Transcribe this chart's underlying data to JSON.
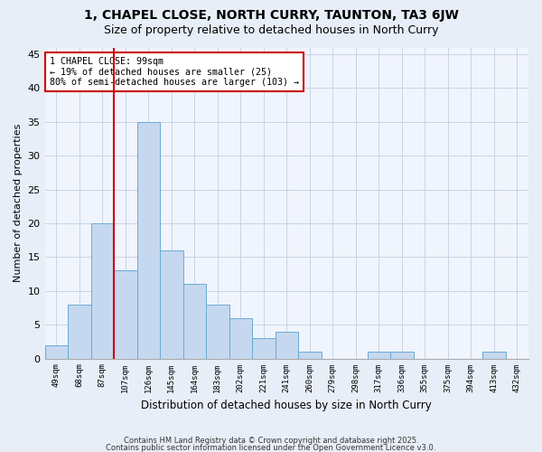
{
  "title1": "1, CHAPEL CLOSE, NORTH CURRY, TAUNTON, TA3 6JW",
  "title2": "Size of property relative to detached houses in North Curry",
  "xlabel": "Distribution of detached houses by size in North Curry",
  "ylabel": "Number of detached properties",
  "bin_labels": [
    "49sqm",
    "68sqm",
    "87sqm",
    "107sqm",
    "126sqm",
    "145sqm",
    "164sqm",
    "183sqm",
    "202sqm",
    "221sqm",
    "241sqm",
    "260sqm",
    "279sqm",
    "298sqm",
    "317sqm",
    "336sqm",
    "355sqm",
    "375sqm",
    "394sqm",
    "413sqm",
    "432sqm"
  ],
  "values": [
    2,
    8,
    20,
    13,
    35,
    16,
    11,
    8,
    6,
    3,
    4,
    1,
    0,
    0,
    1,
    1,
    0,
    0,
    0,
    1,
    0
  ],
  "bar_color": "#c5d8f0",
  "bar_edge_color": "#6aaad4",
  "vline_x_idx": 2.5,
  "vline_color": "#cc0000",
  "annotation_title": "1 CHAPEL CLOSE: 99sqm",
  "annotation_line1": "← 19% of detached houses are smaller (25)",
  "annotation_line2": "80% of semi-detached houses are larger (103) →",
  "annotation_box_color": "white",
  "annotation_box_edge": "#cc0000",
  "ylim": [
    0,
    46
  ],
  "yticks": [
    0,
    5,
    10,
    15,
    20,
    25,
    30,
    35,
    40,
    45
  ],
  "footer_line1": "Contains HM Land Registry data © Crown copyright and database right 2025.",
  "footer_line2": "Contains public sector information licensed under the Open Government Licence v3.0.",
  "bg_color": "#e8eef8",
  "plot_bg_color": "#f0f4fc",
  "grid_color": "#c8d4e8",
  "title1_fontsize": 10,
  "title2_fontsize": 9
}
